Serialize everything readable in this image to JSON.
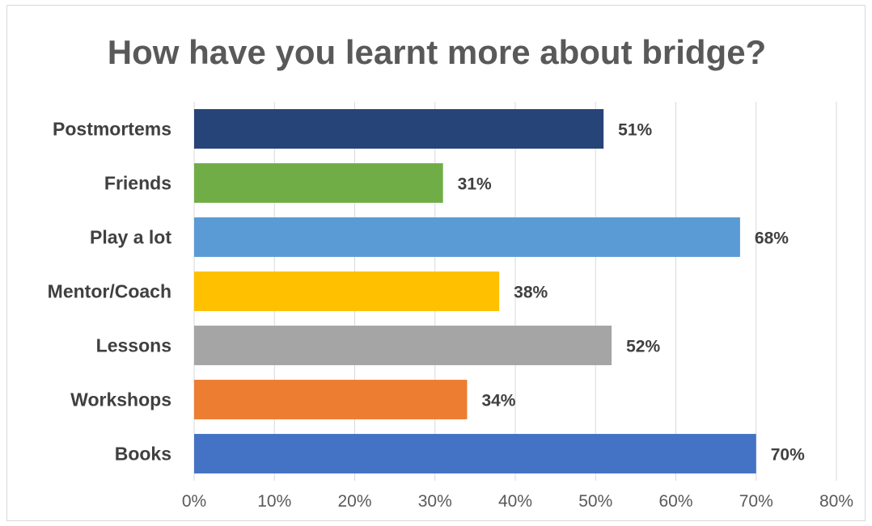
{
  "chart_data": {
    "type": "bar",
    "orientation": "horizontal",
    "title": "How have you learnt more about bridge?",
    "categories": [
      "Postmortems",
      "Friends",
      "Play a lot",
      "Mentor/Coach",
      "Lessons",
      "Workshops",
      "Books"
    ],
    "values": [
      51,
      31,
      68,
      38,
      52,
      34,
      70
    ],
    "value_labels": [
      "51%",
      "31%",
      "68%",
      "38%",
      "52%",
      "34%",
      "70%"
    ],
    "colors": [
      "#264478",
      "#70ad47",
      "#5b9bd5",
      "#ffc000",
      "#a5a5a5",
      "#ed7d31",
      "#4472c4"
    ],
    "xlim": [
      0,
      80
    ],
    "xticks": [
      0,
      10,
      20,
      30,
      40,
      50,
      60,
      70,
      80
    ],
    "xtick_labels": [
      "0%",
      "10%",
      "20%",
      "30%",
      "40%",
      "50%",
      "60%",
      "70%",
      "80%"
    ],
    "grid": true,
    "legend": "none"
  }
}
